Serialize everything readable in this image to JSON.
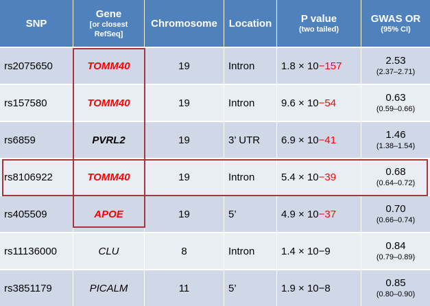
{
  "header": {
    "snp": "SNP",
    "gene": "Gene",
    "gene_sub1": "[or closest",
    "gene_sub2": "RefSeq]",
    "chromosome": "Chromosome",
    "location": "Location",
    "pvalue": "P value",
    "pvalue_sub": "(two tailed)",
    "or": "GWAS OR",
    "or_sub": "(95% CI)"
  },
  "rows": [
    {
      "snp": "rs2075650",
      "gene": "TOMM40",
      "chrom": "19",
      "location": "Intron",
      "p_base": "1.8 × 10",
      "p_exp": "−157",
      "or": "2.53",
      "ci": "(2.37–2.71)"
    },
    {
      "snp": "rs157580",
      "gene": "TOMM40",
      "chrom": "19",
      "location": "Intron",
      "p_base": "9.6 × 10",
      "p_exp": "−54",
      "or": "0.63",
      "ci": "(0.59–0.66)"
    },
    {
      "snp": "rs6859",
      "gene": "PVRL2",
      "chrom": "19",
      "location": "3’ UTR",
      "p_base": "6.9 × 10",
      "p_exp": "−41",
      "or": "1.46",
      "ci": "(1.38–1.54)"
    },
    {
      "snp": "rs8106922",
      "gene": "TOMM40",
      "chrom": "19",
      "location": "Intron",
      "p_base": "5.4 × 10",
      "p_exp": "−39",
      "or": "0.68",
      "ci": "(0.64–0.72)"
    },
    {
      "snp": "rs405509",
      "gene": "APOE",
      "chrom": "19",
      "location": "5’",
      "p_base": "4.9 × 10",
      "p_exp": "−37",
      "or": "0.70",
      "ci": "(0.66–0.74)"
    },
    {
      "snp": "rs11136000",
      "gene": "CLU",
      "chrom": "8",
      "location": "Intron",
      "p_base": "1.4 × 10",
      "p_exp": "−9",
      "or": "0.84",
      "ci": "(0.79–0.89)"
    },
    {
      "snp": "rs3851179",
      "gene": "PICALM",
      "chrom": "11",
      "location": "5’",
      "p_base": "1.9 × 10",
      "p_exp": "−8",
      "or": "0.85",
      "ci": "(0.80–0.90)"
    }
  ],
  "colors": {
    "header_bg": "#4f81bd",
    "row_odd_bg": "#d0d8e8",
    "row_even_bg": "#e9edf4",
    "highlight_red": "#ff0000",
    "box_border": "#a5373a"
  }
}
